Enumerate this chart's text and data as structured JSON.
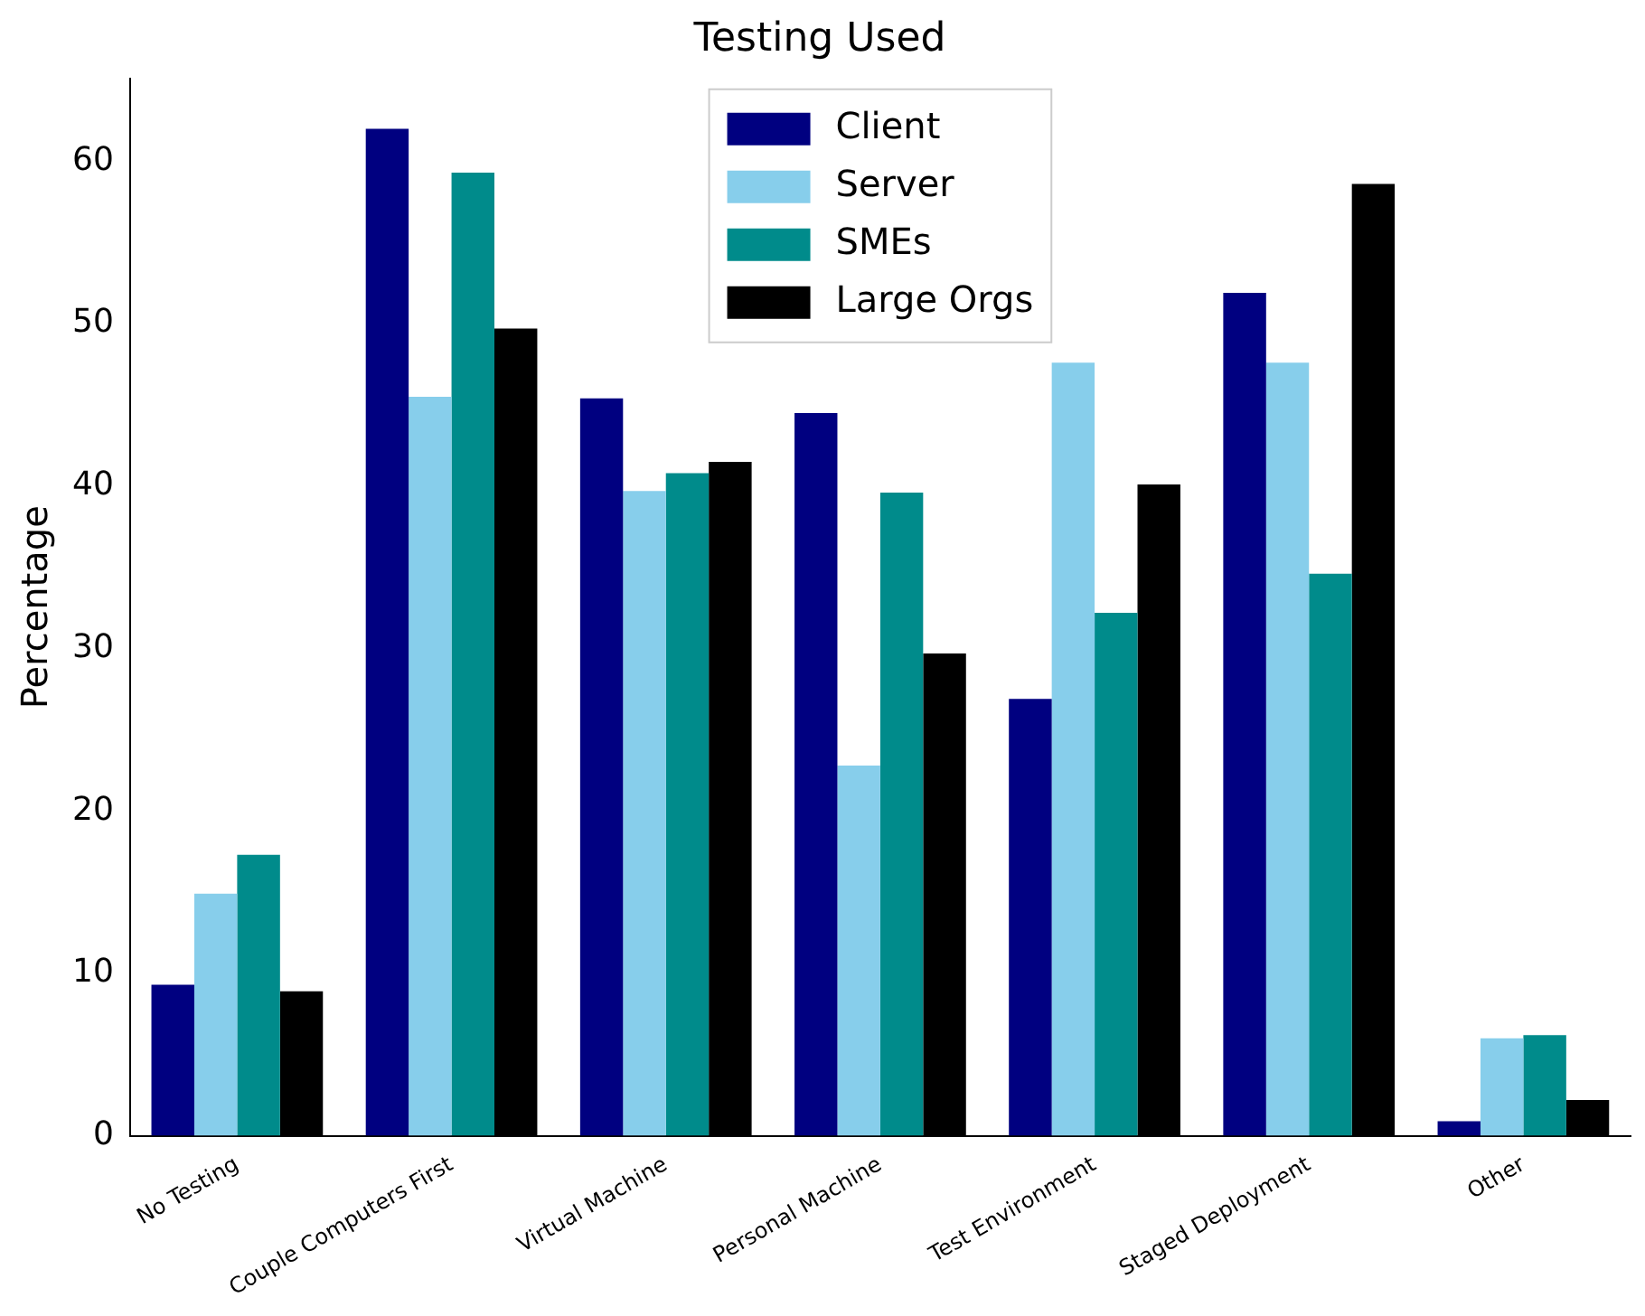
{
  "chart_data": {
    "type": "bar",
    "title": "Testing Used",
    "ylabel": "Percentage",
    "categories": [
      "No Testing",
      "Couple Computers First",
      "Virtual Machine",
      "Personal Machine",
      "Test Environment",
      "Staged Deployment",
      "Other"
    ],
    "series": [
      {
        "name": "Client",
        "color": "#000080",
        "values": [
          9.3,
          62.0,
          45.4,
          44.5,
          26.9,
          51.9,
          0.9
        ]
      },
      {
        "name": "Server",
        "color": "#87ceeb",
        "values": [
          14.9,
          45.5,
          39.7,
          22.8,
          47.6,
          47.6,
          6.0
        ]
      },
      {
        "name": "SMEs",
        "color": "#008b8b",
        "values": [
          17.3,
          59.3,
          40.8,
          39.6,
          32.2,
          34.6,
          6.2
        ]
      },
      {
        "name": "Large Orgs",
        "color": "#000000",
        "values": [
          8.9,
          49.7,
          41.5,
          29.7,
          40.1,
          58.6,
          2.2
        ]
      }
    ],
    "ylim": [
      0,
      65.1
    ],
    "yticks": [
      0,
      10,
      20,
      30,
      40,
      50,
      60
    ],
    "grid": false,
    "legend": "top"
  }
}
